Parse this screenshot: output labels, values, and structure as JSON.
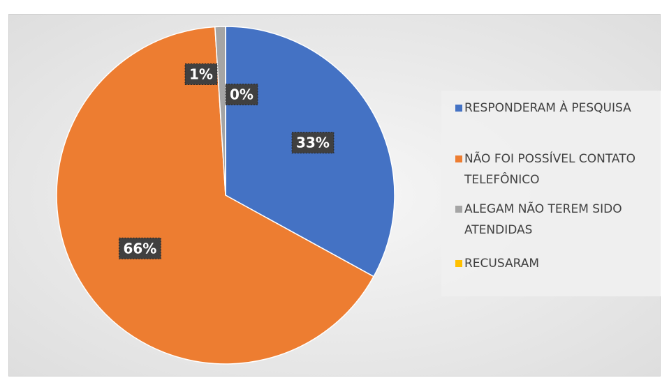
{
  "chart_data": {
    "type": "pie",
    "categories": [
      "RESPONDERAM À PESQUISA",
      "NÃO FOI POSSÍVEL CONTATO TELEFÔNICO",
      "ALEGAM NÃO TEREM SIDO ATENDIDAS",
      "RECUSARAM"
    ],
    "values": [
      33,
      66,
      1,
      0
    ],
    "value_labels": [
      "33%",
      "66%",
      "1%",
      "0%"
    ],
    "colors": [
      "#4472c4",
      "#ed7d31",
      "#a5a5a5",
      "#ffc000"
    ],
    "legend": "right"
  }
}
